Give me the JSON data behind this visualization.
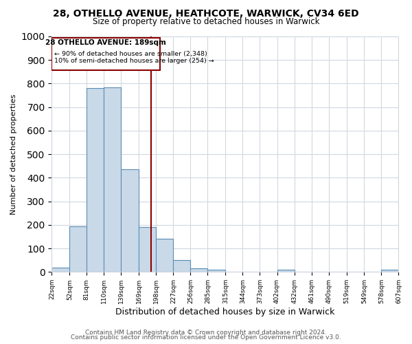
{
  "title": "28, OTHELLO AVENUE, HEATHCOTE, WARWICK, CV34 6ED",
  "subtitle": "Size of property relative to detached houses in Warwick",
  "xlabel": "Distribution of detached houses by size in Warwick",
  "ylabel": "Number of detached properties",
  "footer_line1": "Contains HM Land Registry data © Crown copyright and database right 2024.",
  "footer_line2": "Contains public sector information licensed under the Open Government Licence v3.0.",
  "bar_edges": [
    22,
    52,
    81,
    110,
    139,
    169,
    198,
    227,
    256,
    285,
    315,
    344,
    373,
    402,
    432,
    461,
    490,
    519,
    549,
    578,
    607
  ],
  "bar_heights": [
    20,
    195,
    780,
    785,
    435,
    190,
    140,
    50,
    15,
    10,
    0,
    0,
    0,
    10,
    0,
    0,
    0,
    0,
    0,
    10
  ],
  "bar_color": "#c9d9e8",
  "bar_edge_color": "#5a8db5",
  "vline_x": 189,
  "vline_color": "#8b0000",
  "annotation_title": "28 OTHELLO AVENUE: 189sqm",
  "annotation_line1": "← 90% of detached houses are smaller (2,348)",
  "annotation_line2": "10% of semi-detached houses are larger (254) →",
  "annotation_box_color": "#8b0000",
  "ylim": [
    0,
    1000
  ],
  "yticks": [
    0,
    100,
    200,
    300,
    400,
    500,
    600,
    700,
    800,
    900,
    1000
  ],
  "tick_labels": [
    "22sqm",
    "52sqm",
    "81sqm",
    "110sqm",
    "139sqm",
    "169sqm",
    "198sqm",
    "227sqm",
    "256sqm",
    "285sqm",
    "315sqm",
    "344sqm",
    "373sqm",
    "402sqm",
    "432sqm",
    "461sqm",
    "490sqm",
    "519sqm",
    "549sqm",
    "578sqm",
    "607sqm"
  ],
  "background_color": "#ffffff",
  "grid_color": "#d0d8e0",
  "title_fontsize": 10,
  "subtitle_fontsize": 8.5,
  "ylabel_fontsize": 8,
  "xlabel_fontsize": 9,
  "footer_fontsize": 6.5
}
